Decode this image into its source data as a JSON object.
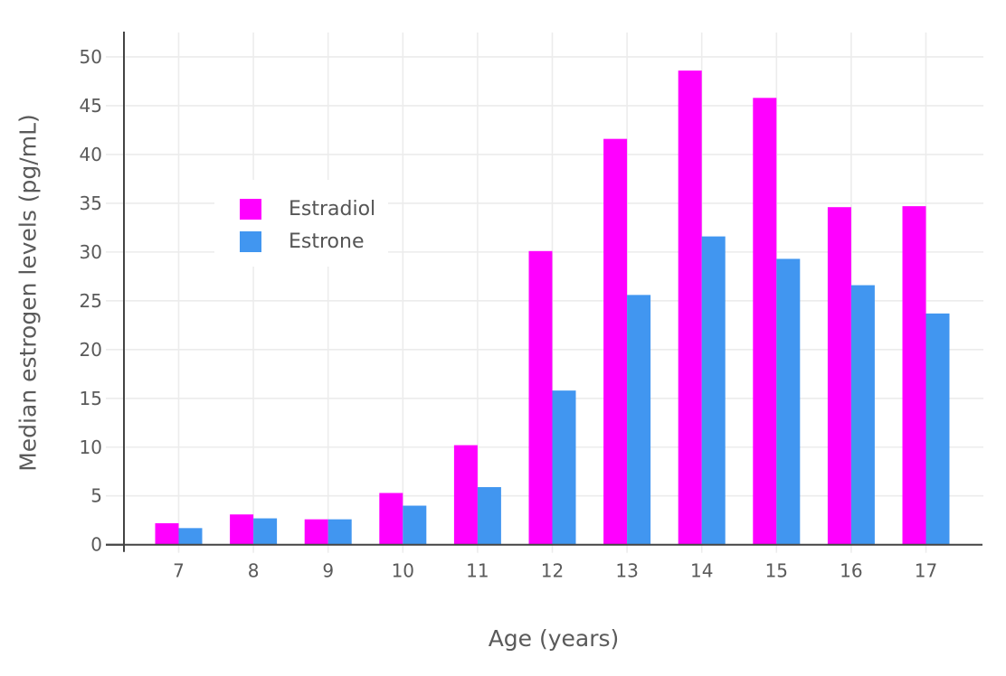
{
  "chart_data": {
    "type": "bar",
    "title": "",
    "xlabel": "Age (years)",
    "ylabel": "Median estrogen levels (pg/mL)",
    "categories": [
      "7",
      "8",
      "9",
      "10",
      "11",
      "12",
      "13",
      "14",
      "15",
      "16",
      "17"
    ],
    "series": [
      {
        "name": "Estradiol",
        "color": "#FF00FF",
        "values": [
          2.2,
          3.1,
          2.6,
          5.3,
          10.2,
          30.1,
          41.6,
          48.6,
          45.8,
          34.6,
          34.7
        ]
      },
      {
        "name": "Estrone",
        "color": "#4196F0",
        "values": [
          1.7,
          2.7,
          2.6,
          4.0,
          5.9,
          15.8,
          25.6,
          31.6,
          29.3,
          26.6,
          23.7
        ]
      }
    ],
    "yticks": [
      0,
      5,
      10,
      15,
      20,
      25,
      30,
      35,
      40,
      45,
      50
    ],
    "ylim": [
      0,
      52.5
    ],
    "grid": true,
    "legend_position": "inside-top-left",
    "colors": {
      "gridline": "#ECECEC",
      "axis_line": "#444444",
      "tick_text": "#5A5A5A",
      "background": "#FFFFFF"
    }
  }
}
